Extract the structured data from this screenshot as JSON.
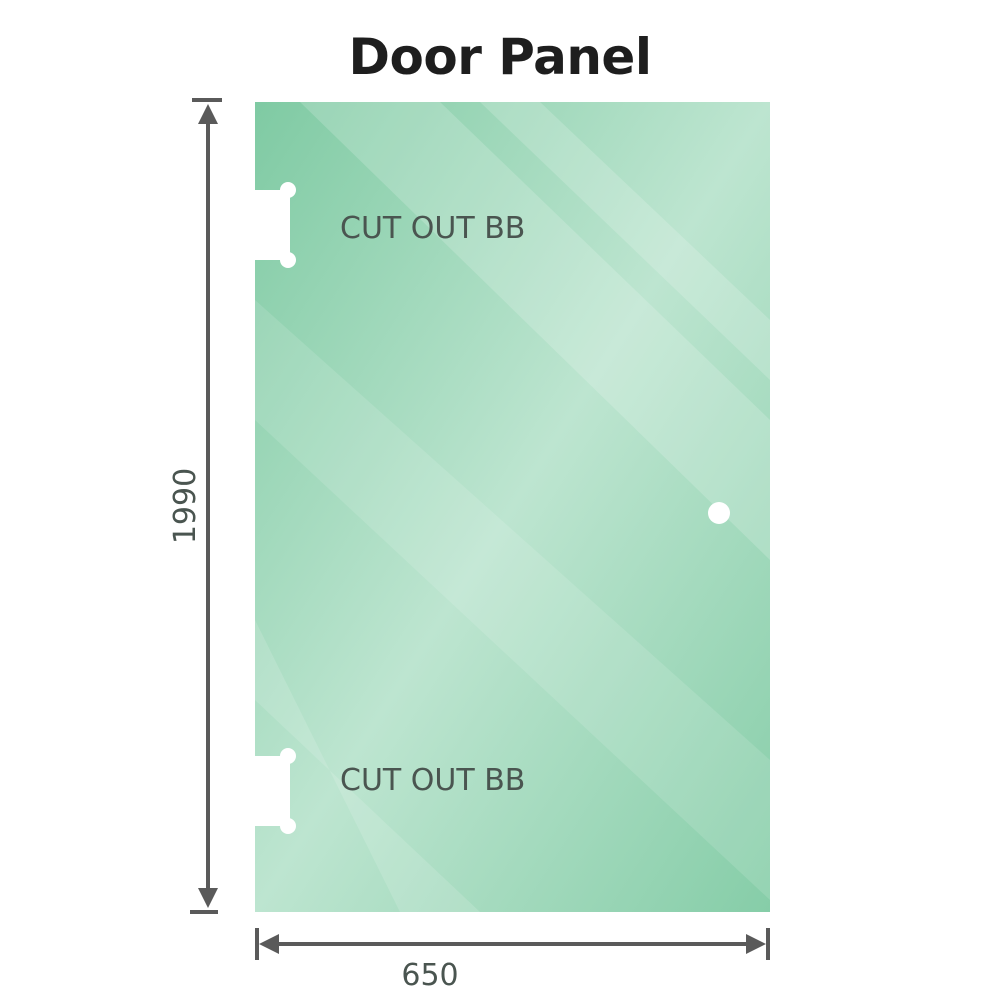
{
  "title": "Door Panel",
  "dimensions": {
    "height": "1990",
    "width": "650"
  },
  "cutouts": [
    {
      "label": "CUT OUT BB"
    },
    {
      "label": "CUT OUT BB"
    }
  ],
  "colors": {
    "glass": "#8fd2b0",
    "glass_light": "#bfe6d2",
    "dimension_line": "#5a5a5a",
    "text": "#4a5550"
  }
}
